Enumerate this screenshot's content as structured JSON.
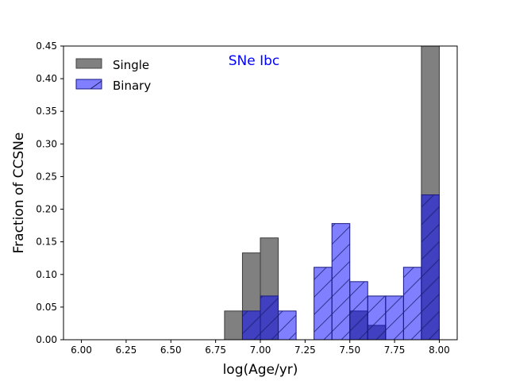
{
  "chart_data": {
    "type": "bar",
    "title": "",
    "annotation": "SNe Ibc",
    "xlabel": "log(Age/yr)",
    "ylabel": "Fraction of CCSNe",
    "xlim": [
      5.9,
      8.1
    ],
    "ylim": [
      0,
      0.45
    ],
    "xticks": [
      "6.00",
      "6.25",
      "6.50",
      "6.75",
      "7.00",
      "7.25",
      "7.50",
      "7.75",
      "8.00"
    ],
    "xtick_values": [
      6.0,
      6.25,
      6.5,
      6.75,
      7.0,
      7.25,
      7.5,
      7.75,
      8.0
    ],
    "yticks": [
      "0.00",
      "0.05",
      "0.10",
      "0.15",
      "0.20",
      "0.25",
      "0.30",
      "0.35",
      "0.40",
      "0.45"
    ],
    "ytick_values": [
      0,
      0.05,
      0.1,
      0.15,
      0.2,
      0.25,
      0.3,
      0.35,
      0.4,
      0.45
    ],
    "bin_width": 0.1,
    "legend_position": "top-left",
    "series": [
      {
        "name": "Single",
        "color": "#808080",
        "hatch": false,
        "bins": [
          {
            "x0": 6.8,
            "value": 0.044
          },
          {
            "x0": 6.9,
            "value": 0.133
          },
          {
            "x0": 7.0,
            "value": 0.156
          },
          {
            "x0": 7.5,
            "value": 0.044
          },
          {
            "x0": 7.6,
            "value": 0.022
          },
          {
            "x0": 7.9,
            "value": 0.45
          }
        ]
      },
      {
        "name": "Binary",
        "color": "#0000ff",
        "hatch": true,
        "bins": [
          {
            "x0": 6.9,
            "value": 0.044
          },
          {
            "x0": 7.0,
            "value": 0.067
          },
          {
            "x0": 7.1,
            "value": 0.044
          },
          {
            "x0": 7.3,
            "value": 0.111
          },
          {
            "x0": 7.4,
            "value": 0.178
          },
          {
            "x0": 7.5,
            "value": 0.089
          },
          {
            "x0": 7.6,
            "value": 0.067
          },
          {
            "x0": 7.7,
            "value": 0.067
          },
          {
            "x0": 7.8,
            "value": 0.111
          },
          {
            "x0": 7.9,
            "value": 0.222
          }
        ]
      }
    ]
  }
}
